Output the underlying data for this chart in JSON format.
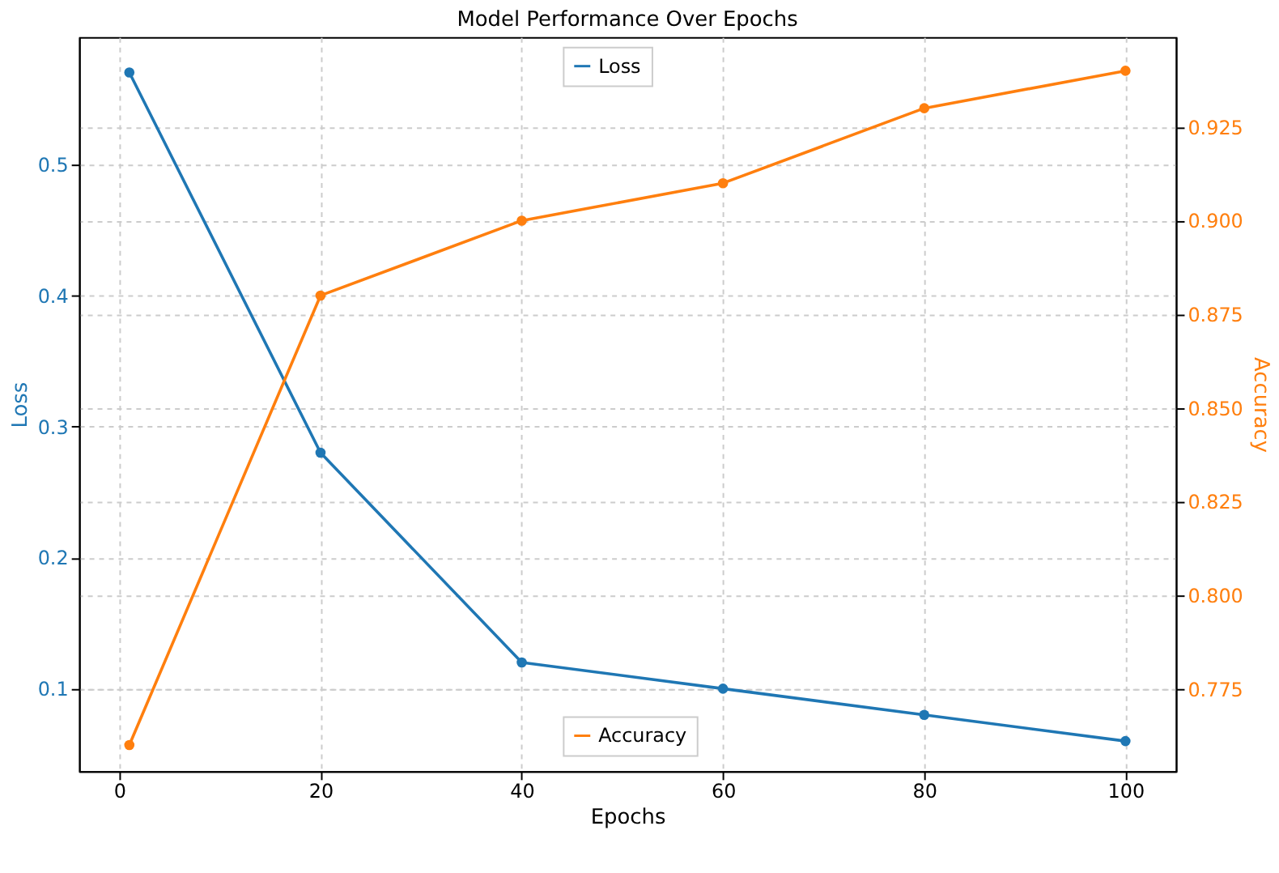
{
  "chart_data": {
    "type": "line",
    "title": "Model Performance Over Epochs",
    "xlabel": "Epochs",
    "ylabel": "Loss",
    "y2label": "Accuracy",
    "x": [
      1,
      20,
      40,
      60,
      80,
      100
    ],
    "series": [
      {
        "name": "Loss",
        "color": "#1f77b4",
        "values": [
          0.57,
          0.28,
          0.12,
          0.1,
          0.08,
          0.06
        ]
      },
      {
        "name": "Accuracy",
        "color": "#ff7f0e",
        "values": [
          0.76,
          0.88,
          0.9,
          0.91,
          0.93,
          0.94
        ],
        "axis": "y2"
      }
    ],
    "xlim": [
      -4,
      105
    ],
    "xticks": [
      0,
      20,
      40,
      60,
      80,
      100
    ],
    "ylim": [
      0.037,
      0.597
    ],
    "yticks": [
      0.1,
      0.2,
      0.3,
      0.4,
      0.5
    ],
    "y2lim": [
      0.753,
      0.949
    ],
    "y2ticks": [
      {
        "value": 0.775,
        "label": "0.775"
      },
      {
        "value": 0.8,
        "label": "0.800"
      },
      {
        "value": 0.825,
        "label": "0.825"
      },
      {
        "value": 0.85,
        "label": "0.850"
      },
      {
        "value": 0.875,
        "label": "0.875"
      },
      {
        "value": 0.9,
        "label": "0.900"
      },
      {
        "value": 0.925,
        "label": "0.925"
      }
    ],
    "grid": true,
    "legend": "top",
    "marker": "circle",
    "line_style": "solid"
  }
}
